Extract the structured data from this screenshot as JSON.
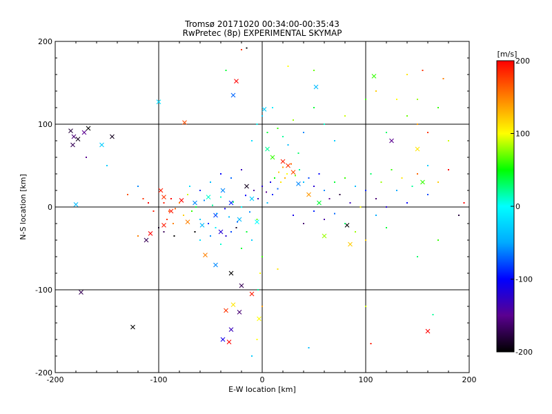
{
  "chart_data": {
    "type": "scatter",
    "title": "Tromsø 20171020 00:34:00-00:35:43",
    "subtitle": "RwPretec (8p) EXPERIMENTAL SKYMAP",
    "xlabel": "E-W location [km]",
    "ylabel": "N-S location [km]",
    "xlim": [
      -200,
      200
    ],
    "ylim": [
      -200,
      200
    ],
    "xticks": [
      "-200",
      "-100",
      "0",
      "100",
      "200"
    ],
    "yticks": [
      "-200",
      "-100",
      "0",
      "100",
      "200"
    ],
    "grid": true,
    "colorbar": {
      "label": "[m/s]",
      "range": [
        -200,
        200
      ],
      "ticks": [
        "200",
        "100",
        "0",
        "-100",
        "-200"
      ],
      "colormap": [
        "#000000",
        "#5a0090",
        "#0000ff",
        "#00aaff",
        "#00ffff",
        "#00ff00",
        "#ffff00",
        "#ff8000",
        "#ff0000"
      ]
    },
    "marker_types": [
      "dot",
      "x"
    ],
    "series": [
      {
        "marker": "x",
        "points": [
          [
            -185,
            92,
            -180
          ],
          [
            -182,
            85,
            -160
          ],
          [
            -178,
            82,
            -190
          ],
          [
            -183,
            75,
            -170
          ],
          [
            -172,
            90,
            -150
          ],
          [
            -168,
            95,
            -200
          ],
          [
            -155,
            75,
            -30
          ],
          [
            -145,
            85,
            -190
          ],
          [
            -100,
            127,
            -20
          ],
          [
            -180,
            3,
            -40
          ],
          [
            -175,
            -103,
            -170
          ],
          [
            -125,
            -145,
            -200
          ],
          [
            -98,
            20,
            190
          ],
          [
            -95,
            12,
            180
          ],
          [
            -88,
            -5,
            190
          ],
          [
            -78,
            8,
            200
          ],
          [
            -72,
            -18,
            150
          ],
          [
            -65,
            5,
            -60
          ],
          [
            -58,
            -22,
            -40
          ],
          [
            -52,
            12,
            10
          ],
          [
            -45,
            -10,
            -80
          ],
          [
            -38,
            20,
            -60
          ],
          [
            -30,
            5,
            -90
          ],
          [
            -22,
            -15,
            -40
          ],
          [
            -15,
            25,
            -190
          ],
          [
            -10,
            10,
            -30
          ],
          [
            -5,
            -18,
            0
          ],
          [
            -55,
            -58,
            150
          ],
          [
            -45,
            -70,
            -60
          ],
          [
            -40,
            -30,
            -120
          ],
          [
            -30,
            -80,
            -200
          ],
          [
            -20,
            -95,
            -170
          ],
          [
            -10,
            -105,
            190
          ],
          [
            -28,
            -118,
            110
          ],
          [
            -22,
            -127,
            -160
          ],
          [
            -30,
            -148,
            -130
          ],
          [
            -38,
            -160,
            -110
          ],
          [
            -32,
            -163,
            200
          ],
          [
            -35,
            -125,
            180
          ],
          [
            -3,
            -135,
            100
          ],
          [
            5,
            70,
            20
          ],
          [
            10,
            60,
            60
          ],
          [
            20,
            55,
            190
          ],
          [
            25,
            50,
            180
          ],
          [
            30,
            42,
            170
          ],
          [
            35,
            28,
            -60
          ],
          [
            45,
            15,
            140
          ],
          [
            55,
            5,
            40
          ],
          [
            60,
            -35,
            80
          ],
          [
            82,
            -22,
            -200
          ],
          [
            85,
            -45,
            120
          ],
          [
            108,
            158,
            60
          ],
          [
            125,
            80,
            -150
          ],
          [
            150,
            70,
            110
          ],
          [
            155,
            30,
            60
          ],
          [
            160,
            -150,
            200
          ],
          [
            -75,
            102,
            170
          ],
          [
            -25,
            152,
            200
          ],
          [
            2,
            118,
            -30
          ],
          [
            -28,
            135,
            -70
          ],
          [
            52,
            145,
            -40
          ],
          [
            -108,
            -32,
            200
          ],
          [
            -112,
            -40,
            -170
          ],
          [
            -95,
            -22,
            190
          ]
        ]
      },
      {
        "marker": "dot",
        "points": [
          [
            -84,
            -2,
            160
          ],
          [
            -80,
            5,
            150
          ],
          [
            -76,
            -10,
            120
          ],
          [
            -72,
            15,
            90
          ],
          [
            -68,
            -5,
            60
          ],
          [
            -64,
            0,
            40
          ],
          [
            -60,
            -15,
            -30
          ],
          [
            -56,
            8,
            -60
          ],
          [
            -52,
            -20,
            -90
          ],
          [
            -48,
            2,
            20
          ],
          [
            -44,
            -8,
            -50
          ],
          [
            -40,
            12,
            10
          ],
          [
            -36,
            -2,
            -110
          ],
          [
            -32,
            -12,
            -40
          ],
          [
            -28,
            6,
            30
          ],
          [
            -24,
            -18,
            -70
          ],
          [
            -20,
            0,
            0
          ],
          [
            -16,
            14,
            -100
          ],
          [
            -12,
            -6,
            -60
          ],
          [
            -8,
            20,
            -140
          ],
          [
            -4,
            10,
            -130
          ],
          [
            0,
            25,
            -120
          ],
          [
            4,
            18,
            -150
          ],
          [
            8,
            30,
            -110
          ],
          [
            12,
            35,
            50
          ],
          [
            16,
            42,
            120
          ],
          [
            20,
            48,
            140
          ],
          [
            24,
            40,
            100
          ],
          [
            28,
            52,
            160
          ],
          [
            32,
            38,
            70
          ],
          [
            36,
            45,
            20
          ],
          [
            40,
            30,
            -40
          ],
          [
            45,
            35,
            -80
          ],
          [
            50,
            25,
            -120
          ],
          [
            55,
            40,
            -100
          ],
          [
            60,
            20,
            -60
          ],
          [
            65,
            10,
            -150
          ],
          [
            70,
            30,
            40
          ],
          [
            75,
            15,
            -180
          ],
          [
            80,
            35,
            60
          ],
          [
            85,
            5,
            -130
          ],
          [
            90,
            25,
            -40
          ],
          [
            95,
            0,
            100
          ],
          [
            100,
            20,
            -90
          ],
          [
            105,
            40,
            30
          ],
          [
            110,
            10,
            -160
          ],
          [
            115,
            30,
            80
          ],
          [
            120,
            0,
            -120
          ],
          [
            125,
            45,
            60
          ],
          [
            130,
            20,
            -50
          ],
          [
            135,
            35,
            110
          ],
          [
            140,
            5,
            -100
          ],
          [
            145,
            25,
            20
          ],
          [
            150,
            40,
            160
          ],
          [
            160,
            15,
            -80
          ],
          [
            170,
            30,
            120
          ],
          [
            180,
            45,
            200
          ],
          [
            -10,
            80,
            -20
          ],
          [
            -5,
            100,
            0
          ],
          [
            0,
            110,
            -30
          ],
          [
            5,
            90,
            40
          ],
          [
            10,
            120,
            -10
          ],
          [
            15,
            95,
            60
          ],
          [
            20,
            85,
            20
          ],
          [
            25,
            75,
            -40
          ],
          [
            30,
            105,
            80
          ],
          [
            35,
            65,
            30
          ],
          [
            40,
            90,
            -60
          ],
          [
            50,
            120,
            40
          ],
          [
            60,
            100,
            10
          ],
          [
            70,
            80,
            -30
          ],
          [
            80,
            110,
            90
          ],
          [
            100,
            130,
            60
          ],
          [
            110,
            140,
            120
          ],
          [
            120,
            90,
            30
          ],
          [
            130,
            130,
            100
          ],
          [
            140,
            110,
            70
          ],
          [
            150,
            100,
            140
          ],
          [
            160,
            90,
            180
          ],
          [
            170,
            120,
            60
          ],
          [
            -95,
            5,
            190
          ],
          [
            -92,
            -15,
            180
          ],
          [
            -88,
            10,
            200
          ],
          [
            -90,
            -5,
            170
          ],
          [
            -86,
            -20,
            150
          ],
          [
            -60,
            -40,
            -20
          ],
          [
            -50,
            -35,
            -60
          ],
          [
            -40,
            -45,
            10
          ],
          [
            -30,
            -30,
            -80
          ],
          [
            -20,
            -50,
            40
          ],
          [
            -10,
            -40,
            -30
          ],
          [
            0,
            -60,
            60
          ],
          [
            -2,
            -80,
            100
          ],
          [
            -4,
            -100,
            20
          ],
          [
            0,
            -120,
            140
          ],
          [
            30,
            -10,
            -110
          ],
          [
            40,
            -20,
            -160
          ],
          [
            50,
            -5,
            -90
          ],
          [
            60,
            -15,
            -140
          ],
          [
            70,
            -8,
            -70
          ],
          [
            80,
            -20,
            30
          ],
          [
            90,
            -30,
            80
          ],
          [
            100,
            -40,
            120
          ],
          [
            110,
            -10,
            -50
          ],
          [
            120,
            -25,
            40
          ],
          [
            -40,
            40,
            -100
          ],
          [
            -30,
            35,
            -70
          ],
          [
            -20,
            45,
            -130
          ],
          [
            -50,
            30,
            -40
          ],
          [
            -60,
            20,
            -90
          ],
          [
            -70,
            25,
            -20
          ],
          [
            -110,
            5,
            200
          ],
          [
            -105,
            -5,
            190
          ],
          [
            -115,
            10,
            180
          ],
          [
            -65,
            -30,
            -200
          ],
          [
            -45,
            -25,
            -10
          ],
          [
            -35,
            -35,
            -120
          ],
          [
            -25,
            -25,
            -190
          ],
          [
            -15,
            -30,
            40
          ],
          [
            -5,
            -15,
            70
          ],
          [
            10,
            15,
            -90
          ],
          [
            15,
            22,
            -70
          ],
          [
            5,
            5,
            -40
          ],
          [
            18,
            30,
            110
          ],
          [
            22,
            35,
            130
          ],
          [
            -100,
            -25,
            -190
          ],
          [
            -95,
            -30,
            -170
          ],
          [
            -85,
            -35,
            -200
          ],
          [
            -120,
            25,
            -60
          ],
          [
            -130,
            15,
            170
          ],
          [
            -120,
            -35,
            150
          ],
          [
            -150,
            50,
            -30
          ],
          [
            -170,
            60,
            -150
          ],
          [
            -20,
            190,
            180
          ],
          [
            -15,
            192,
            -200
          ],
          [
            -35,
            165,
            40
          ],
          [
            25,
            170,
            100
          ],
          [
            50,
            165,
            70
          ],
          [
            140,
            160,
            110
          ],
          [
            150,
            130,
            80
          ],
          [
            155,
            165,
            180
          ],
          [
            175,
            155,
            150
          ],
          [
            160,
            50,
            -30
          ],
          [
            180,
            80,
            90
          ],
          [
            190,
            -10,
            -180
          ],
          [
            195,
            5,
            200
          ],
          [
            170,
            -40,
            60
          ],
          [
            150,
            -60,
            30
          ],
          [
            100,
            -120,
            90
          ],
          [
            105,
            -165,
            190
          ],
          [
            165,
            -130,
            20
          ],
          [
            45,
            -170,
            -40
          ],
          [
            -5,
            -160,
            100
          ],
          [
            -10,
            -180,
            -30
          ],
          [
            15,
            -75,
            110
          ]
        ]
      }
    ]
  }
}
